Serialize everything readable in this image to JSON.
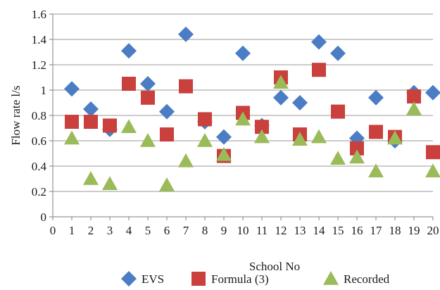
{
  "chart_data": {
    "type": "scatter",
    "xlabel": "School No",
    "ylabel": "Flow rate l/s",
    "xlim": [
      0,
      20
    ],
    "ylim": [
      0,
      1.6
    ],
    "x_ticks": [
      0,
      1,
      2,
      3,
      4,
      5,
      6,
      7,
      8,
      9,
      10,
      11,
      12,
      13,
      14,
      15,
      16,
      17,
      18,
      19,
      20
    ],
    "y_ticks": [
      0,
      0.2,
      0.4,
      0.6,
      0.8,
      1,
      1.2,
      1.4,
      1.6
    ],
    "y_tick_labels": [
      "0",
      "0.2",
      "0.4",
      "0.6",
      "0.8",
      "1",
      "1.2",
      "1.4",
      "1.6"
    ],
    "grid": "horizontal",
    "legend_position": "bottom",
    "series": [
      {
        "name": "EVS",
        "marker": "diamond",
        "color": "#4a7dc4",
        "x": [
          1,
          2,
          3,
          4,
          5,
          6,
          7,
          8,
          9,
          10,
          11,
          12,
          13,
          14,
          15,
          16,
          17,
          18,
          19,
          20
        ],
        "y": [
          1.01,
          0.85,
          0.69,
          1.31,
          1.05,
          0.83,
          1.44,
          0.75,
          0.63,
          1.29,
          0.72,
          0.94,
          0.9,
          1.38,
          1.29,
          0.62,
          0.94,
          0.6,
          0.98,
          0.98
        ]
      },
      {
        "name": "Formula (3)",
        "marker": "square",
        "color": "#c9403c",
        "x": [
          1,
          2,
          3,
          4,
          5,
          6,
          7,
          8,
          9,
          10,
          11,
          12,
          13,
          14,
          15,
          16,
          17,
          18,
          19,
          20
        ],
        "y": [
          0.75,
          0.75,
          0.72,
          1.05,
          0.94,
          0.65,
          1.03,
          0.77,
          0.48,
          0.82,
          0.71,
          1.1,
          0.65,
          1.16,
          0.83,
          0.54,
          0.67,
          0.63,
          0.95,
          0.51
        ]
      },
      {
        "name": "Recorded",
        "marker": "triangle",
        "color": "#9bbb59",
        "x": [
          1,
          2,
          3,
          4,
          5,
          6,
          7,
          8,
          9,
          10,
          11,
          12,
          13,
          14,
          15,
          16,
          17,
          18,
          19,
          20
        ],
        "y": [
          0.62,
          0.3,
          0.26,
          0.71,
          0.6,
          0.25,
          0.44,
          0.6,
          0.49,
          0.77,
          0.63,
          1.06,
          0.61,
          0.63,
          0.46,
          0.47,
          0.36,
          0.62,
          0.85,
          0.36
        ]
      }
    ]
  }
}
